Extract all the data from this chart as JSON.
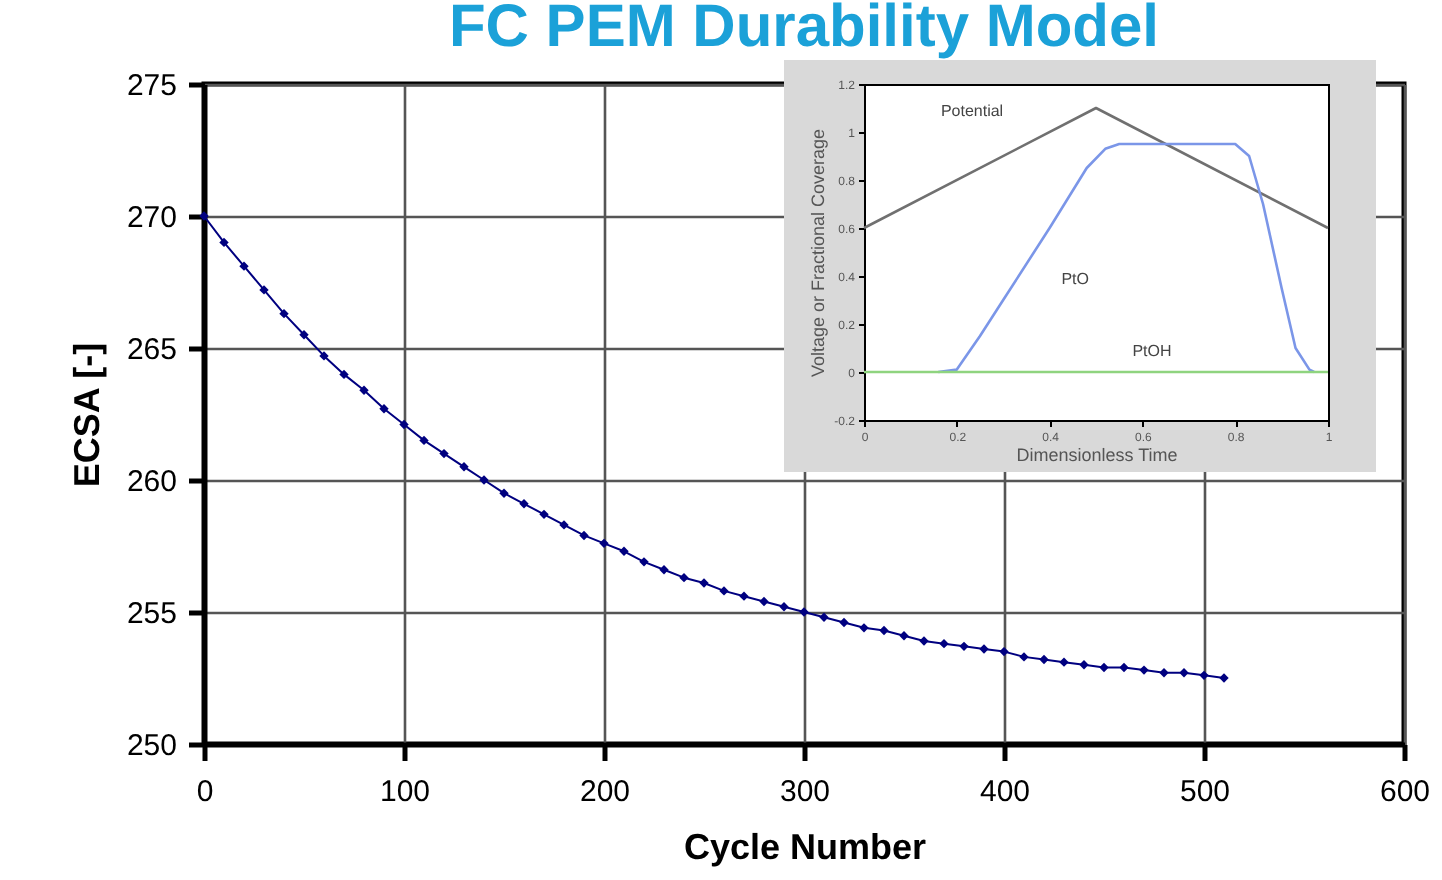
{
  "chart_data": [
    {
      "type": "line",
      "title": "FC PEM Durability Model",
      "xlabel": "Cycle Number",
      "ylabel": "ECSA [-]",
      "x": [
        0,
        10,
        20,
        30,
        40,
        50,
        60,
        70,
        80,
        90,
        100,
        110,
        120,
        130,
        140,
        150,
        160,
        170,
        180,
        190,
        200,
        210,
        220,
        230,
        240,
        250,
        260,
        270,
        280,
        290,
        300,
        310,
        320,
        330,
        340,
        350,
        360,
        370,
        380,
        390,
        400,
        410,
        420,
        430,
        440,
        450,
        460,
        470,
        480,
        490,
        500,
        510
      ],
      "series": [
        {
          "color": "#000080",
          "values": [
            270,
            269,
            268.1,
            267.2,
            266.3,
            265.5,
            264.7,
            264.0,
            263.4,
            262.7,
            262.1,
            261.5,
            261.0,
            260.5,
            260.0,
            259.5,
            259.1,
            258.7,
            258.3,
            257.9,
            257.6,
            257.3,
            256.9,
            256.6,
            256.3,
            256.1,
            255.8,
            255.6,
            255.4,
            255.2,
            255.0,
            254.8,
            254.6,
            254.4,
            254.3,
            254.1,
            253.9,
            253.8,
            253.7,
            253.6,
            253.5,
            253.3,
            253.2,
            253.1,
            253.0,
            252.9,
            252.9,
            252.8,
            252.7,
            252.7,
            252.6,
            252.5
          ]
        }
      ],
      "xlim": [
        0,
        600
      ],
      "xticks": [
        0,
        100,
        200,
        300,
        400,
        500,
        600
      ],
      "ylim": [
        250,
        275
      ],
      "yticks": [
        250,
        255,
        260,
        265,
        270,
        275
      ],
      "grid": true,
      "marker": "diamond",
      "legend": false
    },
    {
      "type": "line",
      "xlabel": "Dimensionless Time",
      "ylabel": "Voltage or Fractional Coverage",
      "series": [
        {
          "name": "Potential",
          "color": "#707070",
          "x": [
            0,
            0.5,
            1
          ],
          "values": [
            0.6,
            1.1,
            0.6
          ]
        },
        {
          "name": "PtO",
          "color": "#7b96e8",
          "x": [
            0.16,
            0.2,
            0.25,
            0.3,
            0.4,
            0.48,
            0.52,
            0.55,
            0.8,
            0.83,
            0.86,
            0.9,
            0.93,
            0.96,
            0.97
          ],
          "values": [
            0,
            0.01,
            0.15,
            0.3,
            0.6,
            0.85,
            0.93,
            0.95,
            0.95,
            0.9,
            0.7,
            0.35,
            0.1,
            0.01,
            0
          ]
        },
        {
          "name": "PtOH",
          "color": "#8fd47f",
          "x": [
            0,
            0.5,
            1
          ],
          "values": [
            0,
            0,
            0
          ]
        }
      ],
      "xlim": [
        0,
        1
      ],
      "xticks": [
        0,
        0.2,
        0.4,
        0.6,
        0.8,
        1
      ],
      "ylim": [
        -0.2,
        1.2
      ],
      "yticks": [
        -0.2,
        0,
        0.2,
        0.4,
        0.6,
        0.8,
        1,
        1.2
      ],
      "grid": false,
      "marker": "none",
      "legend": false
    }
  ]
}
